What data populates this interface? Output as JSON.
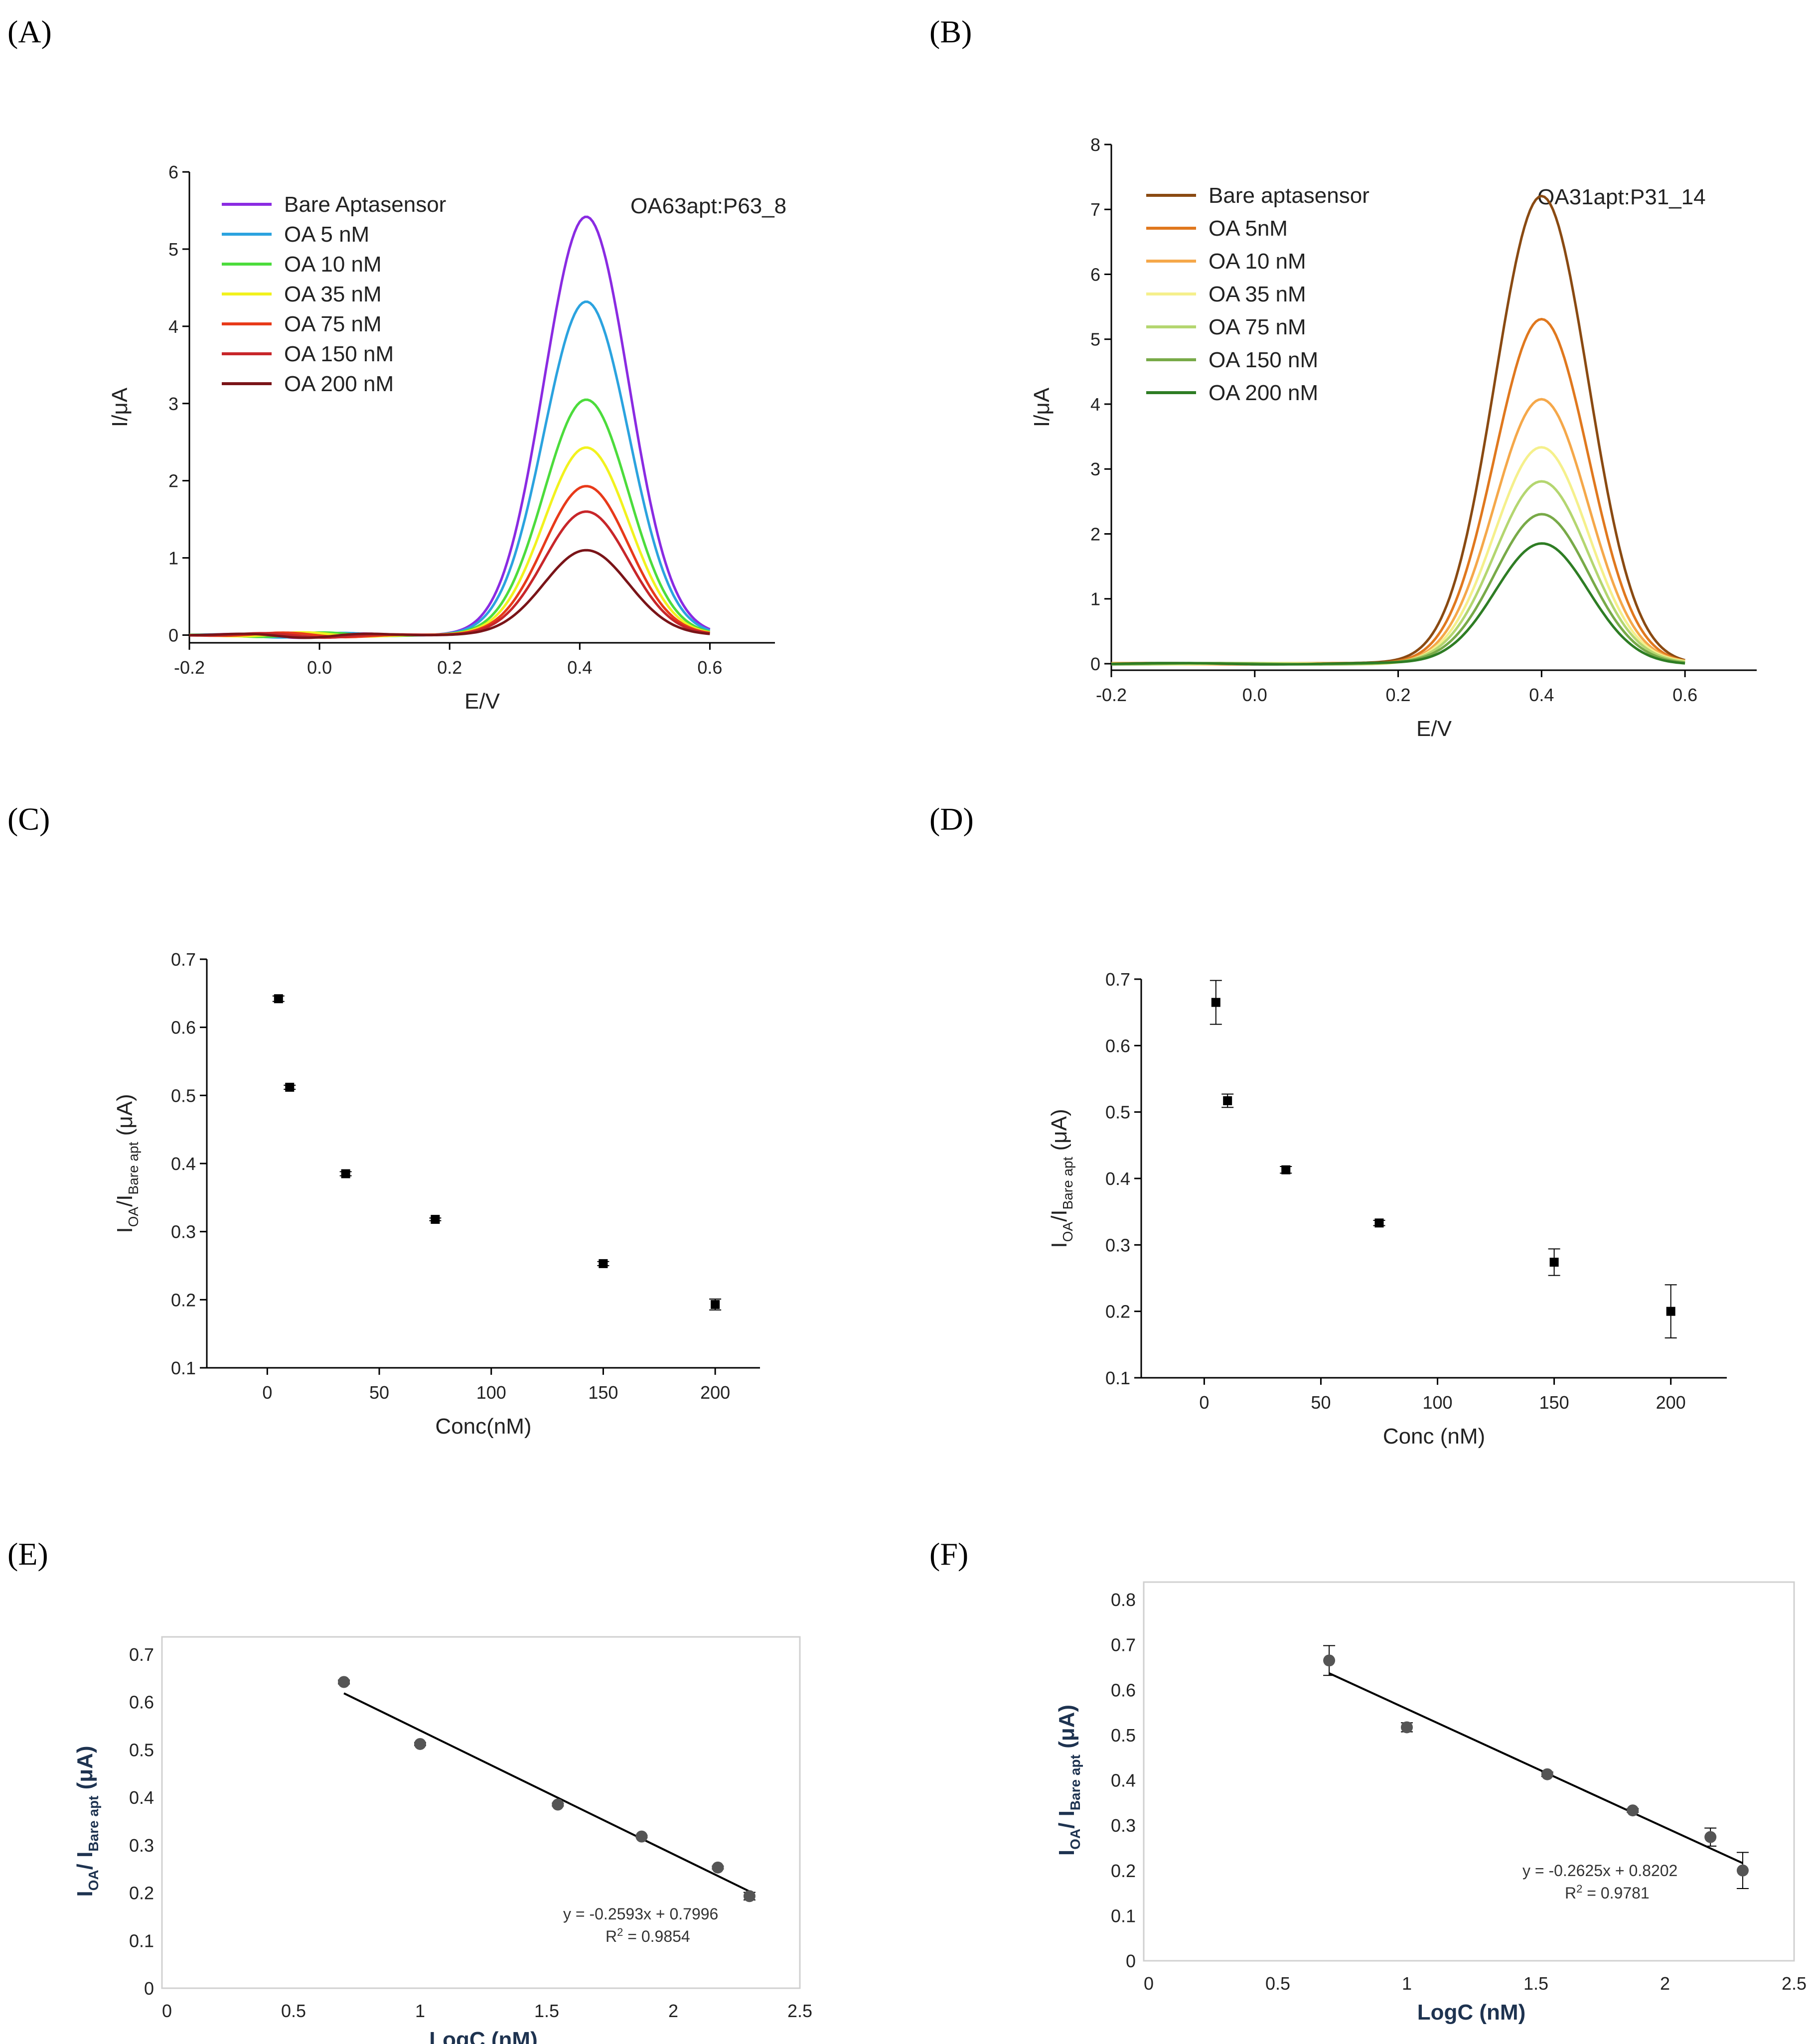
{
  "chart_data": [
    {
      "id": "A",
      "panel_label": "(A)",
      "type": "line",
      "annotation": "OA63apt:P63_8",
      "xlabel": "E/V",
      "ylabel": "I/μA",
      "xlim": [
        -0.2,
        0.7
      ],
      "ylim": [
        -0.1,
        6
      ],
      "xticks": [
        -0.2,
        0.0,
        0.2,
        0.4,
        0.6
      ],
      "yticks": [
        0,
        1,
        2,
        3,
        4,
        5,
        6
      ],
      "peak_x": 0.41,
      "series": [
        {
          "name": "Bare Aptasensor",
          "peak": 5.42,
          "color": "#8a2be2"
        },
        {
          "name": "OA 5 nM",
          "peak": 4.32,
          "color": "#2ba3df"
        },
        {
          "name": "OA 10 nM",
          "peak": 3.05,
          "color": "#4cdc3c"
        },
        {
          "name": "OA 35 nM",
          "peak": 2.43,
          "color": "#f2f21e"
        },
        {
          "name": "OA 75 nM",
          "peak": 1.93,
          "color": "#e83a1a"
        },
        {
          "name": "OA 150 nM",
          "peak": 1.6,
          "color": "#c8262a"
        },
        {
          "name": "OA 200 nM",
          "peak": 1.1,
          "color": "#7a1418"
        }
      ]
    },
    {
      "id": "B",
      "panel_label": "(B)",
      "type": "line",
      "annotation": "OA31apt:P31_14",
      "xlabel": "E/V",
      "ylabel": "I/μA",
      "xlim": [
        -0.2,
        0.7
      ],
      "ylim": [
        -0.1,
        8
      ],
      "xticks": [
        -0.2,
        0.0,
        0.2,
        0.4,
        0.6
      ],
      "yticks": [
        0,
        1,
        2,
        3,
        4,
        5,
        6,
        7,
        8
      ],
      "peak_x": 0.4,
      "series": [
        {
          "name": "Bare aptasensor",
          "peak": 7.2,
          "color": "#8a4a12"
        },
        {
          "name": "OA 5nM",
          "peak": 5.3,
          "color": "#e0781e"
        },
        {
          "name": "OA 10 nM",
          "peak": 4.07,
          "color": "#f5a84a"
        },
        {
          "name": "OA 35 nM",
          "peak": 3.34,
          "color": "#f5f08c"
        },
        {
          "name": "OA 75 nM",
          "peak": 2.82,
          "color": "#b4d670"
        },
        {
          "name": "OA 150 nM",
          "peak": 2.31,
          "color": "#78aa48"
        },
        {
          "name": "OA 200 nM",
          "peak": 1.85,
          "color": "#2e7d24"
        }
      ]
    },
    {
      "id": "C",
      "panel_label": "(C)",
      "type": "scatter",
      "xlabel": "Conc(nM)",
      "ylabel_main": "I",
      "ylabel_sub1": "OA",
      "ylabel_mid": "/I",
      "ylabel_sub2": "Bare apt",
      "ylabel_tail": " (μA)",
      "xlim": [
        -27,
        220
      ],
      "ylim": [
        0.1,
        0.7
      ],
      "xticks": [
        0,
        50,
        100,
        150,
        200
      ],
      "yticks": [
        0.1,
        0.2,
        0.3,
        0.4,
        0.5,
        0.6,
        0.7
      ],
      "x": [
        5,
        10,
        35,
        75,
        150,
        200
      ],
      "y": [
        0.642,
        0.512,
        0.385,
        0.318,
        0.253,
        0.193
      ],
      "yerr": [
        0.004,
        0.003,
        0.003,
        0.002,
        0.003,
        0.008
      ]
    },
    {
      "id": "D",
      "panel_label": "(D)",
      "type": "scatter",
      "xlabel": "Conc (nM)",
      "ylabel_main": "I",
      "ylabel_sub1": "OA",
      "ylabel_mid": "/I",
      "ylabel_sub2": "Bare apt",
      "ylabel_tail": " (μA)",
      "xlim": [
        -27,
        224
      ],
      "ylim": [
        0.1,
        0.7
      ],
      "xticks": [
        0,
        50,
        100,
        150,
        200
      ],
      "yticks": [
        0.1,
        0.2,
        0.3,
        0.4,
        0.5,
        0.6,
        0.7
      ],
      "x": [
        5,
        10,
        35,
        75,
        150,
        200
      ],
      "y": [
        0.665,
        0.517,
        0.413,
        0.333,
        0.274,
        0.2
      ],
      "yerr": [
        0.033,
        0.01,
        0.005,
        0.004,
        0.02,
        0.04
      ]
    },
    {
      "id": "E",
      "panel_label": "(E)",
      "type": "scatter",
      "xlabel": "LogC (nM)",
      "ylabel_main": "I",
      "ylabel_sub1": "OA",
      "ylabel_mid": "/ I",
      "ylabel_sub2": "Bare apt",
      "ylabel_tail": " (μA)",
      "xlim": [
        0,
        2.5
      ],
      "ylim": [
        0,
        0.7
      ],
      "xticks": [
        0,
        0.5,
        1,
        1.5,
        2,
        2.5
      ],
      "yticks": [
        0,
        0.1,
        0.2,
        0.3,
        0.4,
        0.5,
        0.6,
        0.7
      ],
      "x": [
        0.699,
        1.0,
        1.544,
        1.875,
        2.176,
        2.301
      ],
      "y": [
        0.642,
        0.512,
        0.385,
        0.318,
        0.253,
        0.193
      ],
      "yerr": [
        0.004,
        0.003,
        0.003,
        0.002,
        0.003,
        0.008
      ],
      "fit": {
        "slope": -0.2593,
        "intercept": 0.7996
      },
      "equation": "y = -0.2593x + 0.7996",
      "r2_label": "R",
      "r2_sup": "2",
      "r2_value": " = 0.9854"
    },
    {
      "id": "F",
      "panel_label": "(F)",
      "type": "scatter",
      "xlabel": "LogC (nM)",
      "ylabel_main": "I",
      "ylabel_sub1": "OA",
      "ylabel_mid": "/ I",
      "ylabel_sub2": "Bare apt",
      "ylabel_tail": " (μA)",
      "xlim": [
        0,
        2.5
      ],
      "ylim": [
        0,
        0.8
      ],
      "xticks": [
        0,
        0.5,
        1,
        1.5,
        2,
        2.5
      ],
      "yticks": [
        0,
        0.1,
        0.2,
        0.3,
        0.4,
        0.5,
        0.6,
        0.7,
        0.8
      ],
      "x": [
        0.699,
        1.0,
        1.544,
        1.875,
        2.176,
        2.301
      ],
      "y": [
        0.665,
        0.517,
        0.413,
        0.333,
        0.274,
        0.2
      ],
      "yerr": [
        0.033,
        0.01,
        0.005,
        0.004,
        0.02,
        0.04
      ],
      "fit": {
        "slope": -0.2625,
        "intercept": 0.8202
      },
      "equation": "y = -0.2625x + 0.8202",
      "r2_label": "R",
      "r2_sup": "2",
      "r2_value": " = 0.9781"
    }
  ]
}
